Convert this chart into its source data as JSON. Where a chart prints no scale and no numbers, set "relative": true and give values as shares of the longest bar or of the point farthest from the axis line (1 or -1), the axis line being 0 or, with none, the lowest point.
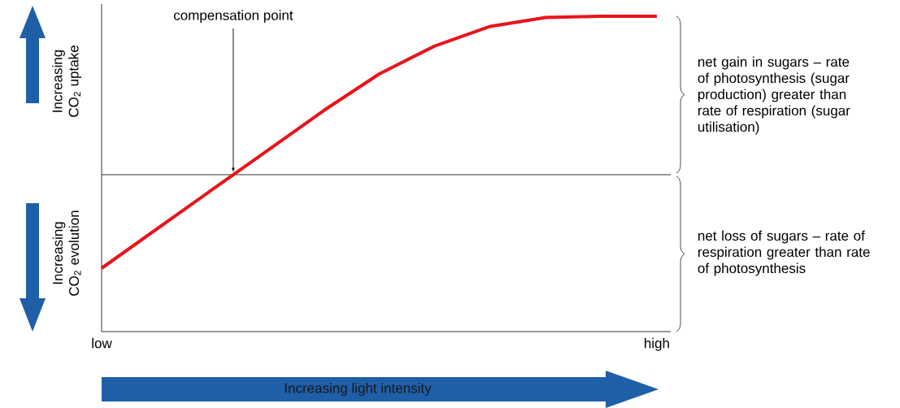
{
  "chart_data": {
    "type": "line",
    "relative": true,
    "categories": [
      null,
      null,
      null,
      null,
      null,
      null,
      null,
      null,
      null,
      null,
      null
    ],
    "series": [
      {
        "color": "#e8141b",
        "values": [
          -0.59,
          -0.341,
          -0.092,
          0.156,
          0.405,
          0.636,
          0.812,
          0.936,
          0.992,
          1,
          1
        ]
      }
    ],
    "marker": "none",
    "annotations": [
      "compensation point",
      "Increasing CO$_{2}$ uptake",
      "Increasing CO$_{2}$ evolution",
      "net gain in sugars – rate of photosynthesis (sugar production) greater than rate of respiration (sugar utilisation)",
      "net loss of sugars – rate of respiration greater than rate of photosynthesis",
      "low",
      "high",
      "Increasing light intensity"
    ]
  }
}
